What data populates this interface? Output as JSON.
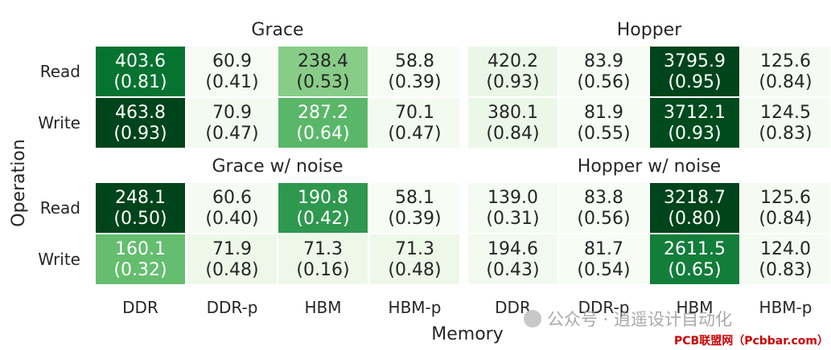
{
  "chart_data": {
    "type": "heatmap",
    "xlabel": "Memory",
    "ylabel": "Operation",
    "columns": [
      "DDR",
      "DDR-p",
      "HBM",
      "HBM-p"
    ],
    "rows": [
      "Read",
      "Write"
    ],
    "colormap": "greens",
    "panels": [
      {
        "title": "Grace",
        "values": [
          [
            403.6,
            60.9,
            238.4,
            58.8
          ],
          [
            463.8,
            70.9,
            287.2,
            70.1
          ]
        ],
        "fractions": [
          [
            "(0.81)",
            "(0.41)",
            "(0.53)",
            "(0.39)"
          ],
          [
            "(0.93)",
            "(0.47)",
            "(0.64)",
            "(0.47)"
          ]
        ]
      },
      {
        "title": "Hopper",
        "values": [
          [
            420.2,
            83.9,
            3795.9,
            125.6
          ],
          [
            380.1,
            81.9,
            3712.1,
            124.5
          ]
        ],
        "fractions": [
          [
            "(0.93)",
            "(0.56)",
            "(0.95)",
            "(0.84)"
          ],
          [
            "(0.84)",
            "(0.55)",
            "(0.93)",
            "(0.83)"
          ]
        ]
      },
      {
        "title": "Grace w/ noise",
        "values": [
          [
            248.1,
            60.6,
            190.8,
            58.1
          ],
          [
            160.1,
            71.9,
            71.3,
            71.3
          ]
        ],
        "fractions": [
          [
            "(0.50)",
            "(0.40)",
            "(0.42)",
            "(0.39)"
          ],
          [
            "(0.32)",
            "(0.48)",
            "(0.16)",
            "(0.48)"
          ]
        ]
      },
      {
        "title": "Hopper w/ noise",
        "values": [
          [
            139.0,
            83.8,
            3218.7,
            125.6
          ],
          [
            194.6,
            81.7,
            2611.5,
            124.0
          ]
        ],
        "fractions": [
          [
            "(0.31)",
            "(0.56)",
            "(0.80)",
            "(0.84)"
          ],
          [
            "(0.43)",
            "(0.54)",
            "(0.65)",
            "(0.83)"
          ]
        ]
      }
    ]
  },
  "watermark": {
    "text": "公众号 · 逍遥设计自动化",
    "site": "PCB联盟网（Pcbbar.com）"
  }
}
